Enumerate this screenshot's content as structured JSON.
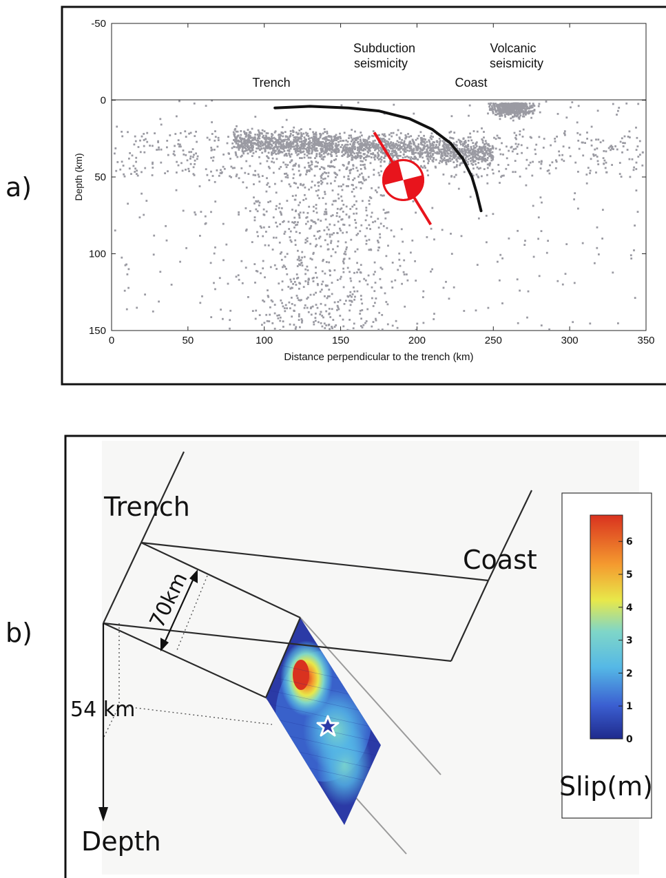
{
  "panel_a": {
    "label": "a)",
    "annotations": {
      "trench": "Trench",
      "subduction_line1": "Subduction",
      "subduction_line2": "seismicity",
      "coast": "Coast",
      "volcanic_line1": "Volcanic",
      "volcanic_line2": "seismicity"
    },
    "chart_data": {
      "type": "scatter",
      "xlabel": "Distance perpendicular to the trench (km)",
      "ylabel": "Depth (km)",
      "xlim": [
        0,
        350
      ],
      "ylim": [
        -50,
        150
      ],
      "y_inverted": true,
      "x_ticks": [
        "0",
        "50",
        "100",
        "150",
        "200",
        "250",
        "300",
        "350"
      ],
      "y_ticks": [
        "-50",
        "0",
        "50",
        "100",
        "150"
      ],
      "grid": false,
      "point_color": "#9a9aa2",
      "slab_color": "#111111",
      "mechanism_color": "#e8141c",
      "slab_interface": [
        {
          "x": 107,
          "y": 5
        },
        {
          "x": 130,
          "y": 4
        },
        {
          "x": 155,
          "y": 5
        },
        {
          "x": 175,
          "y": 7
        },
        {
          "x": 195,
          "y": 12
        },
        {
          "x": 210,
          "y": 19
        },
        {
          "x": 222,
          "y": 28
        },
        {
          "x": 230,
          "y": 38
        },
        {
          "x": 236,
          "y": 50
        },
        {
          "x": 239,
          "y": 60
        },
        {
          "x": 242,
          "y": 72
        }
      ],
      "focal_mechanism": {
        "center": {
          "x": 191,
          "y": 52
        },
        "plane_start": {
          "x": 172,
          "y": 21
        },
        "plane_end": {
          "x": 209,
          "y": 81
        }
      },
      "seismicity_clusters": [
        {
          "name": "interface",
          "x_range": [
            80,
            250
          ],
          "y_range": [
            15,
            45
          ]
        },
        {
          "name": "volcanic",
          "x_range": [
            240,
            285
          ],
          "y_range": [
            0,
            20
          ]
        }
      ]
    }
  },
  "panel_b": {
    "label": "b)",
    "labels": {
      "trench": "Trench",
      "coast": "Coast",
      "width": "70km",
      "depth_value": "54 km",
      "depth": "Depth"
    },
    "colorbar": {
      "title": "Slip(m)",
      "ticks": [
        "0",
        "1",
        "2",
        "3",
        "4",
        "5",
        "6"
      ],
      "max": 6.8,
      "colors": [
        "#1f2a8c",
        "#3b5fd1",
        "#55b8e6",
        "#7fd6c8",
        "#e8e84a",
        "#f49a2f",
        "#d9321f"
      ]
    },
    "slip_patch": {
      "peak_slip": 6.5,
      "hypocenter_marker": "star-icon"
    }
  }
}
